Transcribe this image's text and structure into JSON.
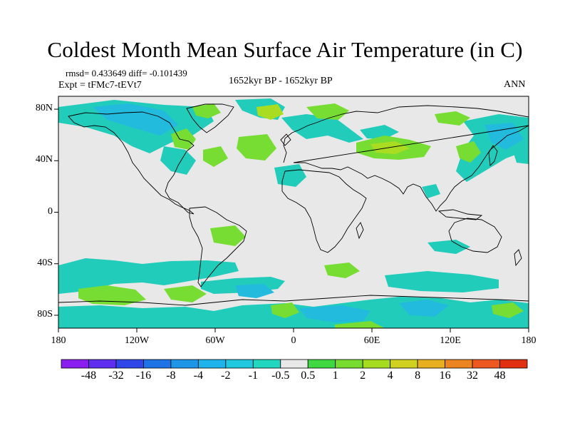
{
  "title": "Coldest Month Mean Surface Air Temperature (in C)",
  "stats": {
    "rmsd": "rmsd= 0.433649 diff= -0.101439"
  },
  "experiment": "Expt = tFMc7-tEVt7",
  "period": "1652kyr BP - 1652kyr BP",
  "season": "ANN",
  "map": {
    "lat_range": [
      -90,
      90
    ],
    "lon_range": [
      -180,
      180
    ],
    "y_ticks": [
      {
        "lat": 80,
        "label": "80N"
      },
      {
        "lat": 40,
        "label": "40N"
      },
      {
        "lat": 0,
        "label": "0"
      },
      {
        "lat": -40,
        "label": "40S"
      },
      {
        "lat": -80,
        "label": "80S"
      }
    ],
    "x_ticks": [
      {
        "lon": -180,
        "label": "180"
      },
      {
        "lon": -120,
        "label": "120W"
      },
      {
        "lon": -60,
        "label": "60W"
      },
      {
        "lon": 0,
        "label": "0"
      },
      {
        "lon": 60,
        "label": "60E"
      },
      {
        "lon": 120,
        "label": "120E"
      },
      {
        "lon": 180,
        "label": "180"
      }
    ],
    "colors": {
      "background": "#e8e8e8",
      "cool1": "#22ccbb",
      "cool2": "#22bbdd",
      "cool3": "#1ea0e0",
      "warm1": "#77dd33",
      "warm2": "#aadd22"
    }
  },
  "colorbar": {
    "colors": [
      "#8a1ef0",
      "#5f2ef0",
      "#2f47e8",
      "#1e74e6",
      "#1e96e8",
      "#1fb3ec",
      "#20c8e0",
      "#22d6c0",
      "#e8e8e8",
      "#40d840",
      "#78dc30",
      "#a6dc20",
      "#cfd020",
      "#e8b020",
      "#ec8420",
      "#ec5820",
      "#e03010"
    ],
    "labels": [
      "-48",
      "-32",
      "-16",
      "-8",
      "-4",
      "-2",
      "-1",
      "-0.5",
      "0.5",
      "1",
      "2",
      "4",
      "8",
      "16",
      "32",
      "48"
    ]
  }
}
